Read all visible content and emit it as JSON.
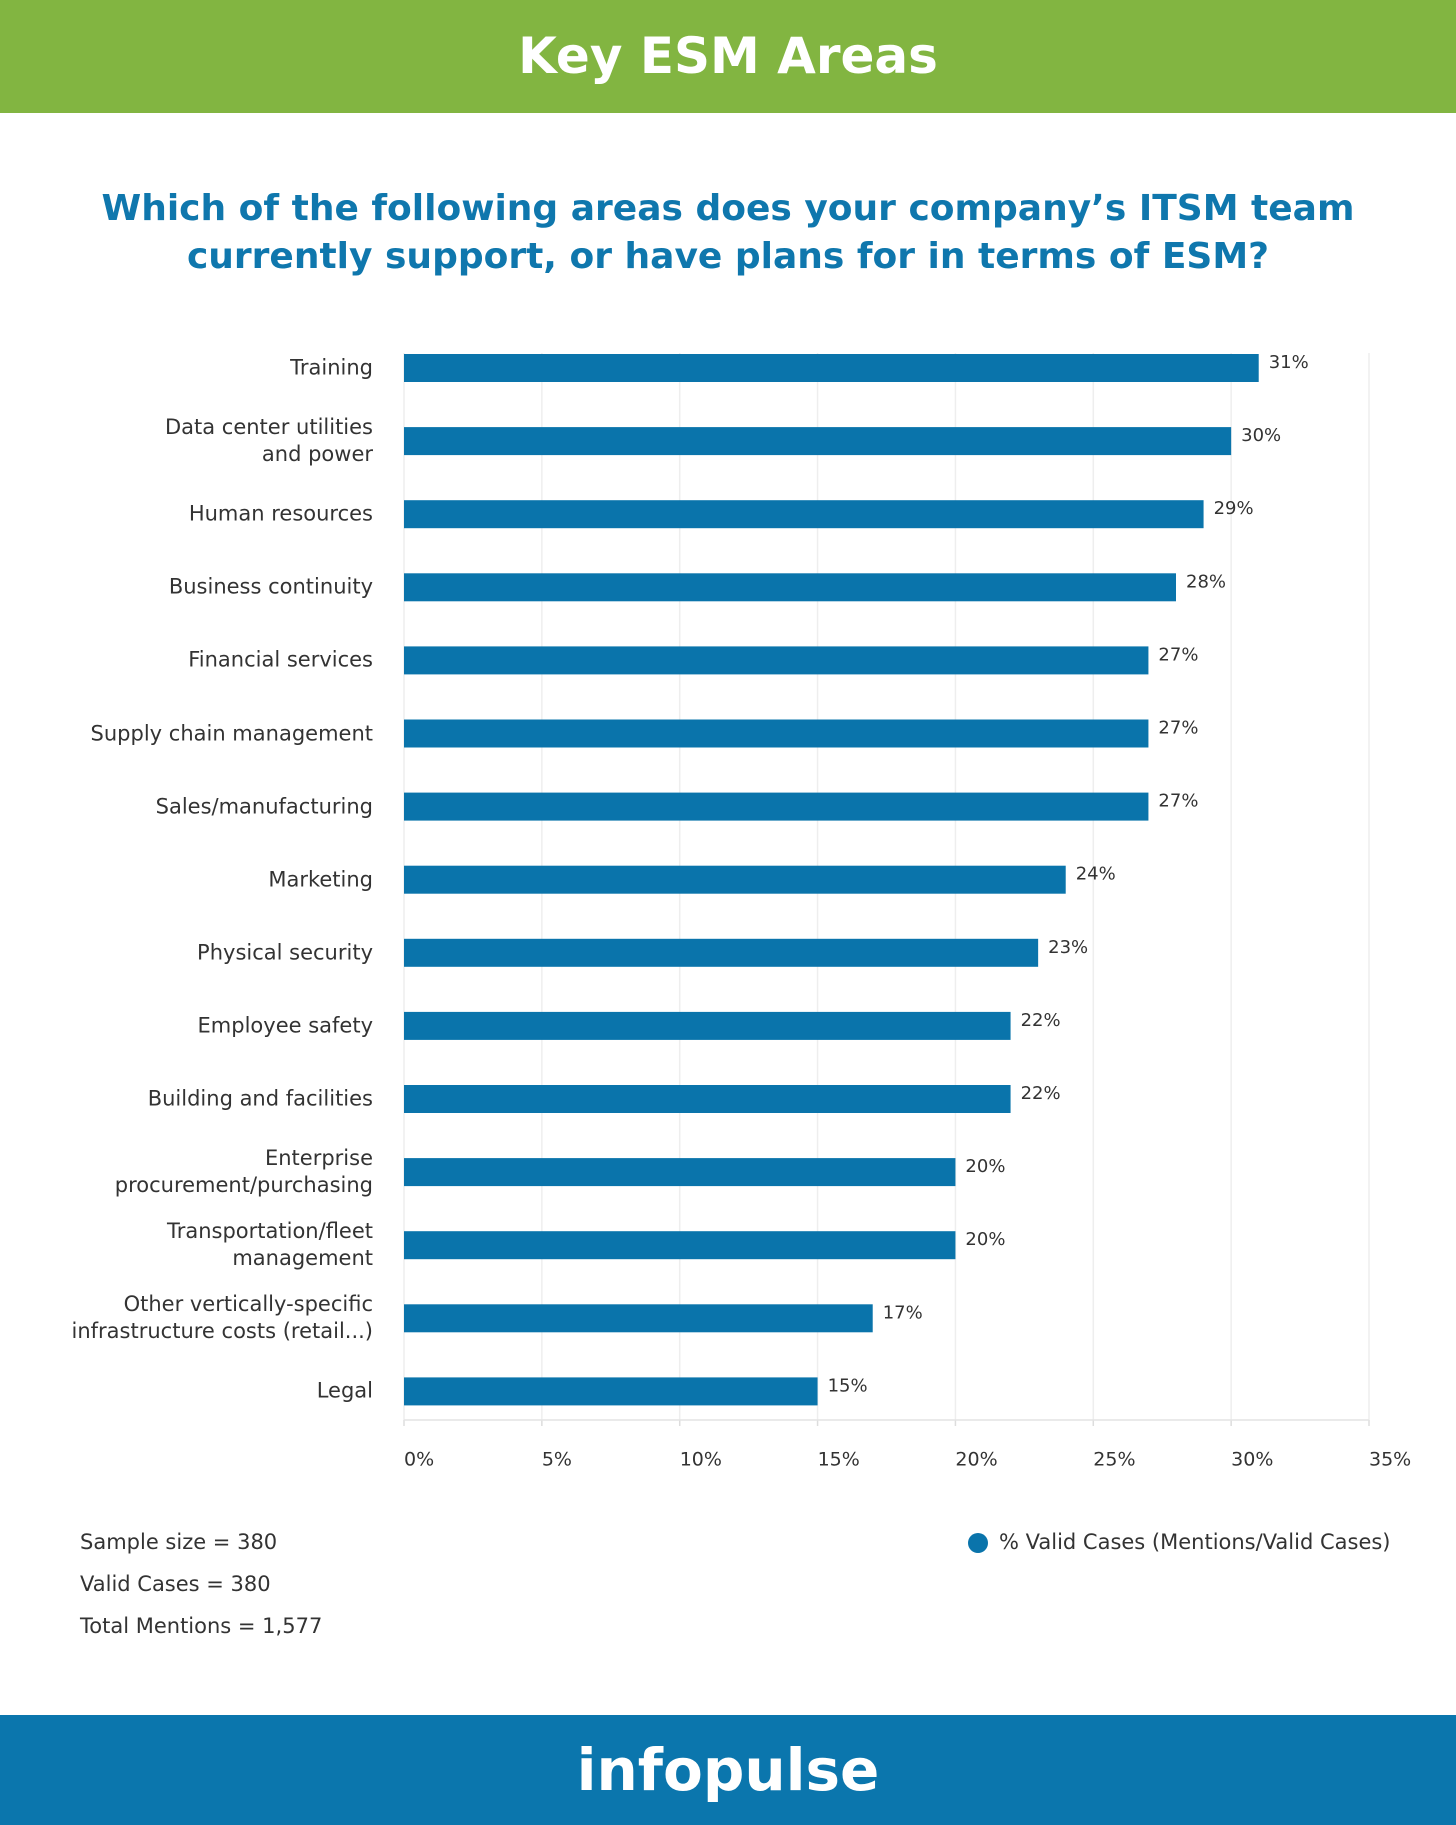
{
  "header": {
    "title": "Key ESM Areas"
  },
  "chart_data": {
    "type": "bar",
    "orientation": "horizontal",
    "title": "Which of the following areas does your company’s ITSM team\ncurrently support, or have plans for in terms of ESM?",
    "categories": [
      "Training",
      "Data center utilities\nand power",
      "Human resources",
      "Business continuity",
      "Financial services",
      "Supply chain management",
      "Sales/manufacturing",
      "Marketing",
      "Physical security",
      "Employee safety",
      "Building and facilities",
      "Enterprise\nprocurement/purchasing",
      "Transportation/fleet\nmanagement",
      "Other vertically-specific\ninfrastructure costs (retail...)",
      "Legal"
    ],
    "series": [
      {
        "name": "% Valid Cases (Mentions/Valid Cases)",
        "color": "#0a74ab",
        "values": [
          31,
          30,
          29,
          28,
          27,
          27,
          27,
          24,
          23,
          22,
          22,
          20,
          20,
          17,
          15
        ],
        "value_labels": [
          "31%",
          "30%",
          "29%",
          "28%",
          "27%",
          "27%",
          "27%",
          "24%",
          "23%",
          "22%",
          "22%",
          "20%",
          "20%",
          "17%",
          "15%"
        ]
      }
    ],
    "xlim": [
      0,
      35
    ],
    "xticks": [
      {
        "value": 0,
        "label": "0%"
      },
      {
        "value": 5,
        "label": "5%"
      },
      {
        "value": 10,
        "label": "10%"
      },
      {
        "value": 15,
        "label": "15%"
      },
      {
        "value": 20,
        "label": "20%"
      },
      {
        "value": 25,
        "label": "25%"
      },
      {
        "value": 30,
        "label": "30%"
      },
      {
        "value": 35,
        "label": "35%"
      }
    ],
    "grid": true,
    "notes": [
      "Sample size = 380",
      "Valid Cases = 380",
      "Total Mentions = 1,577"
    ]
  },
  "footer": {
    "brand": "infopulse"
  }
}
